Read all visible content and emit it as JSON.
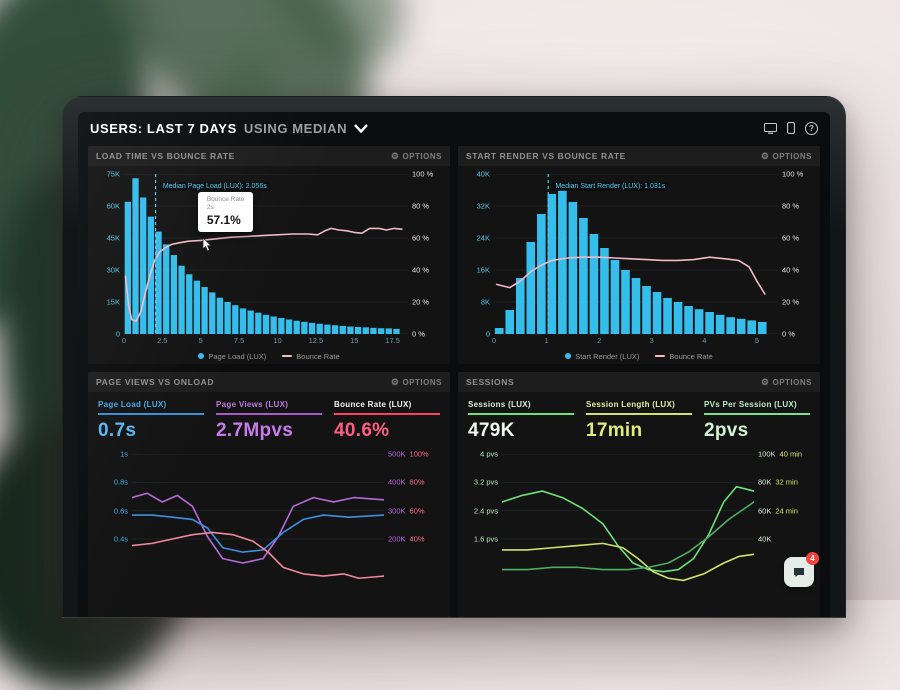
{
  "header": {
    "title_main": "USERS: LAST 7 DAYS",
    "title_secondary": "USING MEDIAN",
    "help_glyph": "?",
    "icons": [
      "desktop-icon",
      "mobile-icon",
      "help-icon"
    ]
  },
  "labels": {
    "options": "OPTIONS",
    "gear_glyph": "⚙"
  },
  "chat": {
    "badge": "4"
  },
  "colors": {
    "accent_cyan": "#35bdec",
    "accent_pink": "#f2bac7",
    "accent_purple": "#b66ad8",
    "accent_red": "#ff3e63",
    "accent_green": "#6fe07a",
    "accent_yellow_green": "#cfe36a"
  },
  "chart_data": [
    {
      "id": "load-time-vs-bounce-rate",
      "type": "bar",
      "title": "LOAD TIME VS BOUNCE RATE",
      "xlim": [
        0,
        18.5
      ],
      "xticks": [
        0,
        2.5,
        5,
        7.5,
        10,
        12.5,
        15,
        17.5
      ],
      "yticks_left": [
        "75K",
        "60K",
        "45K",
        "30K",
        "15K",
        "0"
      ],
      "yticks_right": [
        "100 %",
        "80 %",
        "60 %",
        "40 %",
        "20 %",
        "0 %"
      ],
      "tick_step_pct": 20,
      "left_color": "#56c4e8",
      "right_color": "#e8e0e3",
      "x_color": "#6f98a8",
      "bars": {
        "name": "Page Load (LUX)",
        "color": "#35bdec",
        "x_start": 0,
        "bin": 0.5,
        "max": 75,
        "unit": "K pageviews",
        "values": [
          62,
          73,
          64,
          55,
          48,
          42,
          37,
          32,
          28,
          25,
          22,
          19.5,
          17,
          15,
          13.5,
          12,
          11,
          10,
          9,
          8.2,
          7.5,
          6.8,
          6.2,
          5.7,
          5.2,
          4.8,
          4.4,
          4.1,
          3.8,
          3.5,
          3.3,
          3.1,
          2.9,
          2.7,
          2.6,
          2.4
        ]
      },
      "series": [
        {
          "name": "Bounce Rate",
          "color": "#f2bac7",
          "width": 1.6,
          "unit": "%",
          "points": [
            [
              0.1,
              36
            ],
            [
              0.3,
              18
            ],
            [
              0.5,
              9
            ],
            [
              0.8,
              8
            ],
            [
              1.1,
              14
            ],
            [
              1.4,
              26
            ],
            [
              1.7,
              37
            ],
            [
              2.0,
              46
            ],
            [
              2.3,
              51
            ],
            [
              2.7,
              54
            ],
            [
              3.1,
              56
            ],
            [
              3.6,
              57
            ],
            [
              4.2,
              58
            ],
            [
              5,
              58.5
            ],
            [
              6,
              59.5
            ],
            [
              7,
              60.5
            ],
            [
              8,
              61
            ],
            [
              9,
              61.5
            ],
            [
              10,
              62
            ],
            [
              11,
              62.5
            ],
            [
              12,
              62.5
            ],
            [
              12.6,
              62
            ],
            [
              13.1,
              64.5
            ],
            [
              13.5,
              66
            ],
            [
              14,
              65
            ],
            [
              14.5,
              64.5
            ],
            [
              15,
              63.5
            ],
            [
              15.5,
              63
            ],
            [
              16,
              66
            ],
            [
              16.6,
              66
            ],
            [
              17.1,
              65
            ],
            [
              17.6,
              66
            ],
            [
              18.1,
              65.5
            ]
          ]
        }
      ],
      "median": {
        "x": 2.056,
        "label": "Median Page Load (LUX): 2.056s"
      },
      "tooltip": {
        "title": "Bounce Rate",
        "subtitle": "2s",
        "value": "57.1%"
      },
      "legend": [
        {
          "label": "Page Load (LUX)",
          "color": "#35bdec",
          "swatch": "dot"
        },
        {
          "label": "Bounce Rate",
          "color": "#f2bac7",
          "swatch": "line"
        }
      ]
    },
    {
      "id": "start-render-vs-bounce-rate",
      "type": "bar",
      "title": "START RENDER VS BOUNCE RATE",
      "xlim": [
        0,
        5.4
      ],
      "xticks": [
        0,
        1,
        2,
        3,
        4,
        5
      ],
      "yticks_left": [
        "40K",
        "32K",
        "24K",
        "16K",
        "8K",
        "0"
      ],
      "yticks_right": [
        "100 %",
        "80 %",
        "60 %",
        "40 %",
        "20 %",
        "0 %"
      ],
      "tick_step_pct": 20,
      "left_color": "#56c4e8",
      "right_color": "#e8e0e3",
      "x_color": "#6f98a8",
      "bars": {
        "name": "Start Render (LUX)",
        "color": "#35bdec",
        "x_start": 0,
        "bin": 0.2,
        "max": 40,
        "unit": "K pageviews",
        "values": [
          1.5,
          6,
          14,
          23,
          30,
          35,
          36,
          33,
          29,
          25,
          21.5,
          18.5,
          16,
          14,
          12,
          10.5,
          9,
          8,
          7,
          6.2,
          5.5,
          4.8,
          4.2,
          3.8,
          3.4,
          3
        ]
      },
      "series": [
        {
          "name": "Bounce Rate",
          "color": "#f2bac7",
          "width": 1.6,
          "unit": "%",
          "points": [
            [
              0.05,
              31
            ],
            [
              0.3,
              29
            ],
            [
              0.5,
              33
            ],
            [
              0.7,
              39
            ],
            [
              0.9,
              43
            ],
            [
              1.1,
              46
            ],
            [
              1.4,
              47.5
            ],
            [
              1.7,
              48
            ],
            [
              2,
              48
            ],
            [
              2.3,
              47.5
            ],
            [
              2.6,
              47
            ],
            [
              2.9,
              46.5
            ],
            [
              3.2,
              46
            ],
            [
              3.5,
              46
            ],
            [
              3.8,
              46.5
            ],
            [
              4.1,
              48
            ],
            [
              4.4,
              47
            ],
            [
              4.65,
              46
            ],
            [
              4.85,
              42
            ],
            [
              5.0,
              33
            ],
            [
              5.15,
              25
            ]
          ]
        }
      ],
      "median": {
        "x": 1.031,
        "label": "Median Start Render (LUX): 1.031s"
      },
      "legend": [
        {
          "label": "Start Render (LUX)",
          "color": "#35bdec",
          "swatch": "dot"
        },
        {
          "label": "Bounce Rate",
          "color": "#f2bac7",
          "swatch": "line"
        }
      ]
    },
    {
      "id": "page-views-vs-onload",
      "type": "line",
      "title": "PAGE VIEWS VS ONLOAD",
      "xlim": [
        0,
        100
      ],
      "yticks_left": [
        "1s",
        "0.8s",
        "0.6s",
        "0.4s"
      ],
      "yticks_right": [
        [
          "500K",
          "100%"
        ],
        [
          "400K",
          "80%"
        ],
        [
          "300K",
          "60%"
        ],
        [
          "200K",
          "40%"
        ]
      ],
      "tick_step_pct": 13,
      "left_color": "#4aa8e8",
      "right_colors": [
        "#b66ad8",
        "#ff6b8a"
      ],
      "stats": [
        {
          "label": "Page Load (LUX)",
          "value": "0.7s",
          "label_color": "#4aa8e8",
          "underline_color": "#3a90d2",
          "value_color": "#58b8f2"
        },
        {
          "label": "Page Views (LUX)",
          "value": "2.7Mpvs",
          "label_color": "#c07ae0",
          "underline_color": "#a85cc8",
          "value_color": "#c87cea"
        },
        {
          "label": "Bounce Rate (LUX)",
          "value": "40.6%",
          "label_color": "#f2f2f2",
          "underline_color": "#ff3e63",
          "value_color": "#ff5d82"
        }
      ],
      "series": [
        {
          "name": "Page Views (LUX)",
          "color": "#b66ad8",
          "width": 1.6,
          "points": [
            [
              0,
              80
            ],
            [
              6,
              82
            ],
            [
              12,
              78
            ],
            [
              18,
              81
            ],
            [
              24,
              76
            ],
            [
              30,
              62
            ],
            [
              36,
              52
            ],
            [
              44,
              50
            ],
            [
              52,
              52
            ],
            [
              58,
              62
            ],
            [
              64,
              76
            ],
            [
              72,
              80
            ],
            [
              80,
              78
            ],
            [
              88,
              80
            ],
            [
              100,
              79
            ]
          ]
        },
        {
          "name": "Page Load (LUX)",
          "color": "#3f8fe0",
          "width": 1.6,
          "points": [
            [
              0,
              72
            ],
            [
              8,
              72
            ],
            [
              16,
              71
            ],
            [
              24,
              70
            ],
            [
              30,
              66
            ],
            [
              36,
              57
            ],
            [
              44,
              55
            ],
            [
              52,
              56
            ],
            [
              60,
              64
            ],
            [
              68,
              70
            ],
            [
              76,
              72
            ],
            [
              86,
              71
            ],
            [
              100,
              72
            ]
          ]
        },
        {
          "name": "Bounce Rate (LUX)",
          "color": "#f2889f",
          "width": 1.6,
          "points": [
            [
              0,
              58
            ],
            [
              8,
              59
            ],
            [
              16,
              61
            ],
            [
              24,
              63
            ],
            [
              32,
              64
            ],
            [
              40,
              63
            ],
            [
              48,
              60
            ],
            [
              54,
              55
            ],
            [
              60,
              48
            ],
            [
              68,
              45
            ],
            [
              76,
              44
            ],
            [
              84,
              45
            ],
            [
              90,
              43
            ],
            [
              100,
              44
            ]
          ]
        }
      ]
    },
    {
      "id": "sessions",
      "type": "line",
      "title": "SESSIONS",
      "xlim": [
        0,
        100
      ],
      "yticks_left": [
        "4 pvs",
        "3.2 pvs",
        "2.4 pvs",
        "1.6 pvs"
      ],
      "yticks_right": [
        [
          "100K",
          "40 min"
        ],
        [
          "80K",
          "32 min"
        ],
        [
          "60K",
          "24 min"
        ],
        [
          "40K",
          ""
        ]
      ],
      "tick_step_pct": 13,
      "left_color": "#b9e4bd",
      "right_colors": [
        "#d9ead9",
        "#d9e873"
      ],
      "stats": [
        {
          "label": "Sessions (LUX)",
          "value": "479K",
          "label_color": "#d9edd9",
          "underline_color": "#6fe07a",
          "value_color": "#f0f7f0"
        },
        {
          "label": "Session Length (LUX)",
          "value": "17min",
          "label_color": "#e6efa4",
          "underline_color": "#cfe36a",
          "value_color": "#dfec7e"
        },
        {
          "label": "PVs Per Session (LUX)",
          "value": "2pvs",
          "label_color": "#c2ebc6",
          "underline_color": "#7fdd8c",
          "value_color": "#d2f4d6"
        }
      ],
      "series": [
        {
          "name": "Sessions (LUX)",
          "color": "#6fe07a",
          "width": 1.6,
          "points": [
            [
              0,
              78
            ],
            [
              8,
              81
            ],
            [
              16,
              83
            ],
            [
              24,
              80
            ],
            [
              32,
              75
            ],
            [
              40,
              68
            ],
            [
              46,
              58
            ],
            [
              52,
              50
            ],
            [
              58,
              47
            ],
            [
              64,
              46
            ],
            [
              70,
              47
            ],
            [
              76,
              52
            ],
            [
              82,
              63
            ],
            [
              88,
              78
            ],
            [
              93,
              85
            ],
            [
              100,
              83
            ]
          ]
        },
        {
          "name": "Session Length (LUX)",
          "color": "#cfe36a",
          "width": 1.6,
          "points": [
            [
              0,
              56
            ],
            [
              10,
              56
            ],
            [
              20,
              57
            ],
            [
              30,
              58
            ],
            [
              40,
              59
            ],
            [
              48,
              57
            ],
            [
              54,
              52
            ],
            [
              60,
              46
            ],
            [
              66,
              43
            ],
            [
              72,
              42
            ],
            [
              80,
              45
            ],
            [
              88,
              50
            ],
            [
              94,
              53
            ],
            [
              100,
              54
            ]
          ]
        },
        {
          "name": "PVs Per Session (LUX)",
          "color": "#4fae62",
          "width": 1.6,
          "points": [
            [
              0,
              47
            ],
            [
              10,
              47
            ],
            [
              20,
              48
            ],
            [
              30,
              48
            ],
            [
              40,
              47
            ],
            [
              50,
              47
            ],
            [
              58,
              48
            ],
            [
              66,
              50
            ],
            [
              74,
              55
            ],
            [
              82,
              62
            ],
            [
              90,
              70
            ],
            [
              100,
              78
            ]
          ]
        }
      ]
    }
  ]
}
